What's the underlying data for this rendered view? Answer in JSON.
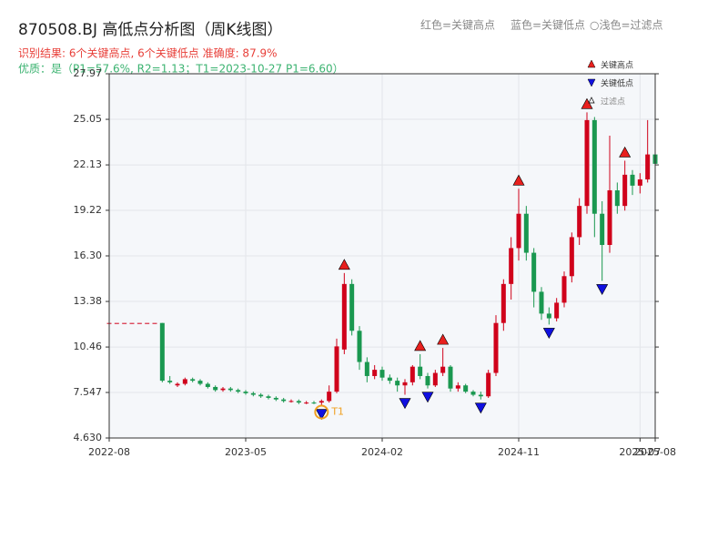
{
  "chart_data": {
    "type": "candlestick",
    "title": "870508.BJ 高低点分析图（周K线图）",
    "subtitle": "识别结果: 6个关键高点, 6个关键低点  准确度: 87.9%",
    "quality_note": "优质：是（P1=57.6%, R2=1.13；T1=2023-10-27 P1=6.60）",
    "color_notes": [
      "红色=关键高点",
      "蓝色=关键低点",
      "○浅色=过滤点"
    ],
    "annotation": "T1",
    "categories": [
      "2022-08",
      null,
      null,
      null,
      null,
      null,
      null,
      null,
      null,
      null,
      null,
      null,
      null,
      null,
      null,
      null,
      null,
      null,
      "2023-05",
      null,
      null,
      null,
      null,
      null,
      null,
      null,
      null,
      null,
      null,
      null,
      null,
      null,
      null,
      null,
      null,
      null,
      "2024-02",
      null,
      null,
      null,
      null,
      null,
      null,
      null,
      null,
      null,
      null,
      null,
      null,
      null,
      null,
      null,
      null,
      null,
      "2024-11",
      null,
      null,
      null,
      null,
      null,
      null,
      null,
      null,
      null,
      null,
      null,
      null,
      null,
      null,
      null,
      "2025-07",
      null,
      "2025-08"
    ],
    "open": [
      12.0,
      12.0,
      12.0,
      12.0,
      12.0,
      12.0,
      12.0,
      12.0,
      8.3,
      8.0,
      8.1,
      8.4,
      8.3,
      8.1,
      7.9,
      7.7,
      7.8,
      7.7,
      7.6,
      7.5,
      7.4,
      7.3,
      7.2,
      7.1,
      7.0,
      7.0,
      6.9,
      6.9,
      6.9,
      7.0,
      7.6,
      10.3,
      14.5,
      11.5,
      9.5,
      8.6,
      9.0,
      8.5,
      8.3,
      8.0,
      8.2,
      9.2,
      8.6,
      8.0,
      8.8,
      9.2,
      7.8,
      8.0,
      7.6,
      7.4,
      7.3,
      8.8,
      12.0,
      14.5,
      16.8,
      19.0,
      16.5,
      14.0,
      12.6,
      12.3,
      13.3,
      15.0,
      17.5,
      19.5,
      25.0,
      19.0,
      17.0,
      20.5,
      19.5,
      21.5,
      20.8,
      21.2,
      22.8
    ],
    "high": [
      12.0,
      12.0,
      12.0,
      12.0,
      12.0,
      12.0,
      12.0,
      12.0,
      8.6,
      8.2,
      8.5,
      8.5,
      8.4,
      8.2,
      8.0,
      7.9,
      7.9,
      7.8,
      7.7,
      7.6,
      7.5,
      7.4,
      7.3,
      7.2,
      7.1,
      7.1,
      7.0,
      7.0,
      7.1,
      8.0,
      11.0,
      15.2,
      14.8,
      11.8,
      9.8,
      9.3,
      9.2,
      8.7,
      8.5,
      8.4,
      9.3,
      10.0,
      8.8,
      9.0,
      10.4,
      9.3,
      8.2,
      8.1,
      7.7,
      7.6,
      9.0,
      12.5,
      14.8,
      17.5,
      20.6,
      19.5,
      16.8,
      14.3,
      13.0,
      13.6,
      15.3,
      17.8,
      20.0,
      25.5,
      25.2,
      19.8,
      24.0,
      21.0,
      22.4,
      21.8,
      21.6,
      25.0,
      23.2
    ],
    "low": [
      12.0,
      12.0,
      12.0,
      12.0,
      12.0,
      12.0,
      12.0,
      8.2,
      8.1,
      7.9,
      8.0,
      8.2,
      8.0,
      7.8,
      7.6,
      7.6,
      7.6,
      7.5,
      7.4,
      7.3,
      7.2,
      7.1,
      7.0,
      6.9,
      6.9,
      6.8,
      6.8,
      6.8,
      6.7,
      6.9,
      7.5,
      10.0,
      11.2,
      9.0,
      8.2,
      8.4,
      8.3,
      8.1,
      7.6,
      7.4,
      8.0,
      8.4,
      7.8,
      7.9,
      8.6,
      7.6,
      7.6,
      7.5,
      7.3,
      7.1,
      7.2,
      8.6,
      11.5,
      13.5,
      16.0,
      16.0,
      13.0,
      12.2,
      11.9,
      12.1,
      13.0,
      14.6,
      17.0,
      19.0,
      17.5,
      14.7,
      16.5,
      19.0,
      19.2,
      20.2,
      20.3,
      21.0,
      21.8
    ],
    "close": [
      12.0,
      12.0,
      12.0,
      12.0,
      12.0,
      12.0,
      12.0,
      8.3,
      8.2,
      8.1,
      8.4,
      8.3,
      8.1,
      7.9,
      7.7,
      7.8,
      7.7,
      7.6,
      7.5,
      7.4,
      7.3,
      7.2,
      7.1,
      7.0,
      7.0,
      6.9,
      6.9,
      6.85,
      7.0,
      7.6,
      10.5,
      14.5,
      11.5,
      9.5,
      8.6,
      9.0,
      8.5,
      8.3,
      8.0,
      8.2,
      9.2,
      8.6,
      8.0,
      8.8,
      9.2,
      7.8,
      8.0,
      7.6,
      7.4,
      7.3,
      8.8,
      12.0,
      14.5,
      16.8,
      19.0,
      16.5,
      14.0,
      12.6,
      12.3,
      13.3,
      15.0,
      17.5,
      19.5,
      25.0,
      19.0,
      17.0,
      20.5,
      19.5,
      21.5,
      20.8,
      21.2,
      22.8,
      22.2
    ],
    "up_color": "#d0021b",
    "down_color": "#1a9850",
    "key_highs": {
      "name": "关键高点",
      "color": "#e8201e",
      "points": [
        {
          "x": 31,
          "value": 15.2
        },
        {
          "x": 41,
          "value": 10.0
        },
        {
          "x": 44,
          "value": 10.4
        },
        {
          "x": 54,
          "value": 20.6
        },
        {
          "x": 63,
          "value": 25.5
        },
        {
          "x": 68,
          "value": 22.4
        }
      ]
    },
    "key_lows": {
      "name": "关键低点",
      "color": "#1010e0",
      "points": [
        {
          "x": 28,
          "value": 6.7
        },
        {
          "x": 39,
          "value": 7.4
        },
        {
          "x": 42,
          "value": 7.8
        },
        {
          "x": 49,
          "value": 7.1
        },
        {
          "x": 58,
          "value": 11.9
        },
        {
          "x": 65,
          "value": 14.7
        }
      ]
    },
    "filtered_name": "过滤点",
    "ylim": [
      4.63,
      27.97
    ],
    "yticks": [
      {
        "value": 4.63,
        "label": "4.630"
      },
      7.547,
      10.46,
      13.38,
      {
        "value": 16.3,
        "label": "16.30"
      },
      19.22,
      22.13,
      25.05,
      27.97
    ],
    "grid": true
  }
}
